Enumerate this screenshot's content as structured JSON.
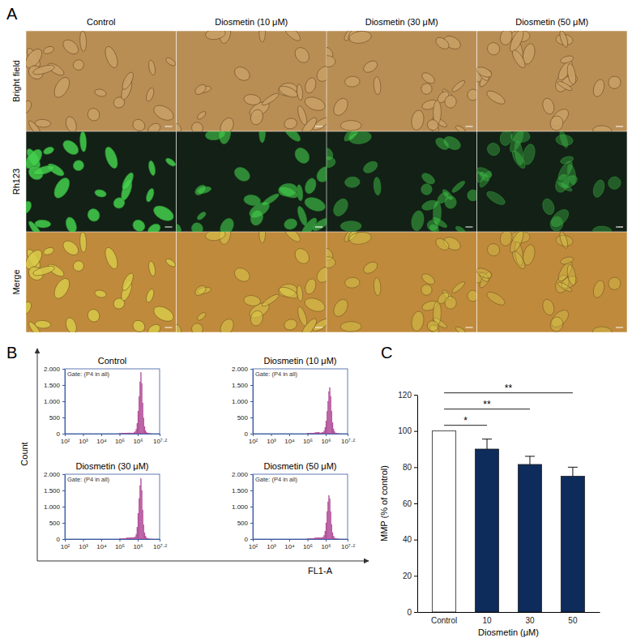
{
  "panel_a": {
    "label": "A",
    "columns": [
      "Control",
      "Diosmetin (10 μM)",
      "Diosmetin (30 μM)",
      "Diosmetin (50 μM)"
    ],
    "rows": [
      "Bright field",
      "Rh123",
      "Merge"
    ]
  },
  "panel_b": {
    "label": "B",
    "x_label": "FL1-A",
    "y_label": "Count"
  },
  "panel_c": {
    "label": "C"
  },
  "chart_data": [
    {
      "type": "histogram",
      "title": "Control",
      "annotation": "Gate: (P4 in all)",
      "log": "x",
      "color": "#b4539c",
      "bins": [
        100000,
        112202,
        125893,
        141254,
        158489,
        177828,
        199526,
        223872,
        251189,
        281838,
        316228,
        354813,
        398107,
        446684,
        501187,
        562341,
        630957,
        707946,
        794328,
        891251,
        1000000,
        1122018,
        1258925,
        1412538,
        1584893,
        1778279,
        1995262,
        2238721,
        2511886,
        2818383,
        3162278,
        3548134,
        3981072,
        4466836,
        5011872,
        5623413,
        6309573,
        7079458,
        7943282,
        8912509,
        10000000
      ],
      "counts": [
        4,
        6,
        8,
        10,
        12,
        14,
        17,
        20,
        22,
        24,
        25,
        24,
        22,
        20,
        20,
        24,
        35,
        60,
        130,
        320,
        700,
        1150,
        1600,
        1880,
        1550,
        950,
        480,
        210,
        90,
        40,
        18,
        9,
        5,
        3,
        2,
        1,
        0,
        0,
        0,
        0
      ],
      "xlim": [
        100,
        15848932
      ],
      "xticks": [
        {
          "value": 100,
          "label": "10²"
        },
        {
          "value": 1000,
          "label": "10³"
        },
        {
          "value": 10000,
          "label": "10⁴"
        },
        {
          "value": 100000,
          "label": "10⁵"
        },
        {
          "value": 1000000,
          "label": "10⁶"
        },
        {
          "value": 15848932,
          "label": "10⁷·²"
        }
      ],
      "ylim": [
        0,
        2000
      ],
      "yticks": [
        0,
        500,
        {
          "value": 1000,
          "label": "1.000"
        },
        {
          "value": 1500,
          "label": "1.500"
        },
        {
          "value": 2000,
          "label": "2.000"
        }
      ]
    },
    {
      "type": "histogram",
      "title": "Diosmetin (10 μM)",
      "annotation": "Gate: (P4 in all)",
      "log": "x",
      "color": "#b4539c",
      "bins": [
        100000,
        112202,
        125893,
        141254,
        158489,
        177828,
        199526,
        223872,
        251189,
        281838,
        316228,
        354813,
        398107,
        446684,
        501187,
        562341,
        630957,
        707946,
        794328,
        891251,
        1000000,
        1122018,
        1258925,
        1412538,
        1584893,
        1778279,
        1995262,
        2238721,
        2511886,
        2818383,
        3162278,
        3548134,
        3981072,
        4466836,
        5011872,
        5623413,
        6309573,
        7079458,
        7943282,
        8912509,
        10000000
      ],
      "counts": [
        5,
        7,
        9,
        11,
        14,
        16,
        20,
        24,
        27,
        30,
        32,
        32,
        30,
        27,
        25,
        26,
        32,
        48,
        85,
        180,
        380,
        680,
        1000,
        1300,
        1420,
        1150,
        700,
        340,
        150,
        65,
        28,
        13,
        6,
        3,
        2,
        1,
        0,
        0,
        0,
        0
      ],
      "xlim": [
        100,
        15848932
      ],
      "xticks": [
        {
          "value": 100,
          "label": "10²"
        },
        {
          "value": 1000,
          "label": "10³"
        },
        {
          "value": 10000,
          "label": "10⁴"
        },
        {
          "value": 100000,
          "label": "10⁵"
        },
        {
          "value": 1000000,
          "label": "10⁶"
        },
        {
          "value": 15848932,
          "label": "10⁷·²"
        }
      ],
      "ylim": [
        0,
        2000
      ],
      "yticks": [
        0,
        500,
        {
          "value": 1000,
          "label": "1.000"
        },
        {
          "value": 1500,
          "label": "1.500"
        },
        {
          "value": 2000,
          "label": "2.000"
        }
      ]
    },
    {
      "type": "histogram",
      "title": "Diosmetin (30 μM)",
      "annotation": "Gate: (P4 in all)",
      "log": "x",
      "color": "#b4539c",
      "bins": [
        100000,
        112202,
        125893,
        141254,
        158489,
        177828,
        199526,
        223872,
        251189,
        281838,
        316228,
        354813,
        398107,
        446684,
        501187,
        562341,
        630957,
        707946,
        794328,
        891251,
        1000000,
        1122018,
        1258925,
        1412538,
        1584893,
        1778279,
        1995262,
        2238721,
        2511886,
        2818383,
        3162278,
        3548134,
        3981072,
        4466836,
        5011872,
        5623413,
        6309573,
        7079458,
        7943282,
        8912509,
        10000000
      ],
      "counts": [
        6,
        8,
        10,
        13,
        16,
        19,
        23,
        27,
        32,
        36,
        40,
        42,
        42,
        40,
        38,
        40,
        50,
        75,
        150,
        360,
        780,
        1250,
        1650,
        1860,
        1500,
        900,
        440,
        190,
        80,
        35,
        16,
        8,
        4,
        2,
        1,
        1,
        0,
        0,
        0,
        0
      ],
      "xlim": [
        100,
        15848932
      ],
      "xticks": [
        {
          "value": 100,
          "label": "10²"
        },
        {
          "value": 1000,
          "label": "10³"
        },
        {
          "value": 10000,
          "label": "10⁴"
        },
        {
          "value": 100000,
          "label": "10⁵"
        },
        {
          "value": 1000000,
          "label": "10⁶"
        },
        {
          "value": 15848932,
          "label": "10⁷·²"
        }
      ],
      "ylim": [
        0,
        2000
      ],
      "yticks": [
        0,
        500,
        {
          "value": 1000,
          "label": "1.000"
        },
        {
          "value": 1500,
          "label": "1.500"
        },
        {
          "value": 2000,
          "label": "2.000"
        }
      ]
    },
    {
      "type": "histogram",
      "title": "Diosmetin (50 μM)",
      "annotation": "Gate: (P4 in all)",
      "log": "x",
      "color": "#b4539c",
      "bins": [
        100000,
        112202,
        125893,
        141254,
        158489,
        177828,
        199526,
        223872,
        251189,
        281838,
        316228,
        354813,
        398107,
        446684,
        501187,
        562341,
        630957,
        707946,
        794328,
        891251,
        1000000,
        1122018,
        1258925,
        1412538,
        1584893,
        1778279,
        1995262,
        2238721,
        2511886,
        2818383,
        3162278,
        3548134,
        3981072,
        4466836,
        5011872,
        5623413,
        6309573,
        7079458,
        7943282,
        8912509,
        10000000
      ],
      "counts": [
        5,
        7,
        9,
        11,
        14,
        17,
        21,
        25,
        29,
        33,
        36,
        38,
        38,
        36,
        34,
        36,
        44,
        62,
        110,
        240,
        500,
        850,
        1150,
        1340,
        1250,
        850,
        450,
        200,
        85,
        38,
        17,
        8,
        4,
        2,
        1,
        1,
        0,
        0,
        0,
        0
      ],
      "xlim": [
        100,
        15848932
      ],
      "xticks": [
        {
          "value": 100,
          "label": "10²"
        },
        {
          "value": 1000,
          "label": "10³"
        },
        {
          "value": 10000,
          "label": "10⁴"
        },
        {
          "value": 100000,
          "label": "10⁵"
        },
        {
          "value": 1000000,
          "label": "10⁶"
        },
        {
          "value": 15848932,
          "label": "10⁷·²"
        }
      ],
      "ylim": [
        0,
        2000
      ],
      "yticks": [
        0,
        500,
        {
          "value": 1000,
          "label": "1.000"
        },
        {
          "value": 1500,
          "label": "1.500"
        },
        {
          "value": 2000,
          "label": "2.000"
        }
      ]
    },
    {
      "type": "bar",
      "x_label": "Diosmetin (μM)",
      "y_label": "MMP (% of control)",
      "categories": [
        "Control",
        "10",
        "30",
        "50"
      ],
      "values": [
        100,
        90,
        81.5,
        75
      ],
      "errors": [
        null,
        5.5,
        4.5,
        5
      ],
      "colors": [
        "#ffffff",
        "#0d2b5b",
        "#0d2b5b",
        "#0d2b5b"
      ],
      "ylim": [
        0,
        120
      ],
      "yticks": [
        0,
        20,
        40,
        60,
        80,
        100,
        120
      ],
      "annotations": [
        {
          "from": "Control",
          "to": "10",
          "label": "*"
        },
        {
          "from": "Control",
          "to": "30",
          "label": "**"
        },
        {
          "from": "Control",
          "to": "50",
          "label": "**"
        }
      ]
    }
  ]
}
